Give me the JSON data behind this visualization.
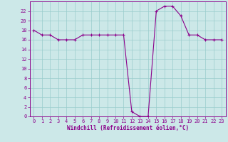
{
  "hours": [
    0,
    1,
    2,
    3,
    4,
    5,
    6,
    7,
    8,
    9,
    10,
    11,
    12,
    13,
    14,
    15,
    16,
    17,
    18,
    19,
    20,
    21,
    22,
    23
  ],
  "values": [
    18,
    17,
    17,
    16,
    16,
    16,
    17,
    17,
    17,
    17,
    17,
    17,
    1,
    0,
    0,
    22,
    23,
    23,
    21,
    17,
    17,
    16,
    16,
    16
  ],
  "line_color": "#8B008B",
  "marker_color": "#8B008B",
  "bg_color": "#cce8e8",
  "grid_color": "#99cccc",
  "xlabel": "Windchill (Refroidissement éolien,°C)",
  "ylim": [
    0,
    24
  ],
  "xlim_min": -0.5,
  "xlim_max": 23.5,
  "yticks": [
    0,
    2,
    4,
    6,
    8,
    10,
    12,
    14,
    16,
    18,
    20,
    22
  ],
  "xticks": [
    0,
    1,
    2,
    3,
    4,
    5,
    6,
    7,
    8,
    9,
    10,
    11,
    12,
    13,
    14,
    15,
    16,
    17,
    18,
    19,
    20,
    21,
    22,
    23
  ],
  "tick_label_color": "#8B008B",
  "border_color": "#8B008B",
  "tick_fontsize": 5,
  "xlabel_fontsize": 5.5,
  "linewidth": 0.8,
  "markersize": 3
}
